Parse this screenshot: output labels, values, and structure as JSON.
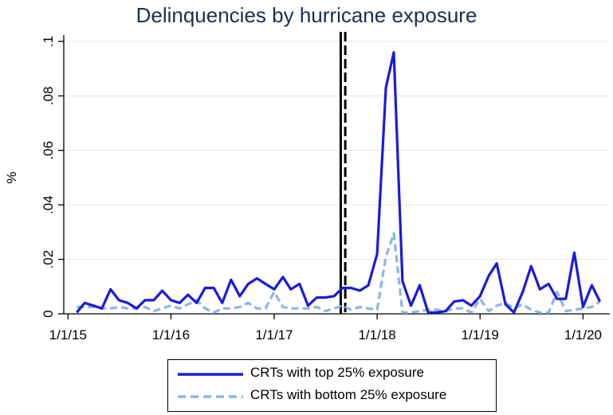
{
  "chart_data": {
    "type": "line",
    "title": "Delinquencies by hurricane exposure",
    "xlabel": "",
    "ylabel": "%",
    "x_tick_labels": [
      "1/1/15",
      "1/1/16",
      "1/1/17",
      "1/1/18",
      "1/1/19",
      "1/1/20"
    ],
    "y_tick_labels": [
      "0",
      ".02",
      ".04",
      ".06",
      ".08",
      ".1"
    ],
    "y_ticks": [
      0,
      0.02,
      0.04,
      0.06,
      0.08,
      0.1
    ],
    "ylim": [
      0,
      0.1
    ],
    "x_range": [
      "2015-01",
      "2020-03"
    ],
    "vertical_lines": [
      {
        "x": "2017-08-25",
        "style": "solid",
        "color": "#000000"
      },
      {
        "x": "2017-09-10",
        "style": "dashed",
        "color": "#000000"
      }
    ],
    "grid": "horizontal",
    "legend_position": "bottom",
    "x": [
      "2015-02",
      "2015-03",
      "2015-04",
      "2015-05",
      "2015-06",
      "2015-07",
      "2015-08",
      "2015-09",
      "2015-10",
      "2015-11",
      "2015-12",
      "2016-01",
      "2016-02",
      "2016-03",
      "2016-04",
      "2016-05",
      "2016-06",
      "2016-07",
      "2016-08",
      "2016-09",
      "2016-10",
      "2016-11",
      "2016-12",
      "2017-01",
      "2017-02",
      "2017-03",
      "2017-04",
      "2017-05",
      "2017-06",
      "2017-07",
      "2017-08",
      "2017-09",
      "2017-10",
      "2017-11",
      "2017-12",
      "2018-01",
      "2018-02",
      "2018-03",
      "2018-04",
      "2018-05",
      "2018-06",
      "2018-07",
      "2018-08",
      "2018-09",
      "2018-10",
      "2018-11",
      "2018-12",
      "2019-01",
      "2019-02",
      "2019-03",
      "2019-04",
      "2019-05",
      "2019-06",
      "2019-07",
      "2019-08",
      "2019-09",
      "2019-10",
      "2019-11",
      "2019-12",
      "2020-01",
      "2020-02",
      "2020-03"
    ],
    "series": [
      {
        "name": "CRTs with top 25% exposure",
        "color": "#1a1adb",
        "style": "solid",
        "values": [
          0.0005,
          0.004,
          0.003,
          0.002,
          0.009,
          0.005,
          0.004,
          0.002,
          0.005,
          0.005,
          0.0085,
          0.005,
          0.004,
          0.007,
          0.004,
          0.0095,
          0.0095,
          0.004,
          0.0125,
          0.0065,
          0.011,
          0.013,
          0.011,
          0.009,
          0.0135,
          0.009,
          0.011,
          0.003,
          0.006,
          0.006,
          0.0065,
          0.0095,
          0.0095,
          0.0085,
          0.0105,
          0.022,
          0.083,
          0.096,
          0.012,
          0.003,
          0.0105,
          0.0005,
          0.0005,
          0.001,
          0.0045,
          0.005,
          0.003,
          0.0065,
          0.014,
          0.0185,
          0.0035,
          0.0005,
          0.008,
          0.0175,
          0.009,
          0.011,
          0.0055,
          0.0055,
          0.0225,
          0.0025,
          0.0105,
          0.0045
        ]
      },
      {
        "name": "CRTs with bottom 25% exposure",
        "color": "#8bb5ea",
        "style": "dashed",
        "values": [
          0.0025,
          0.0025,
          0.0025,
          0.002,
          0.002,
          0.0025,
          0.002,
          0.002,
          0.0025,
          0.001,
          0.002,
          0.003,
          0.002,
          0.0035,
          0.005,
          0.002,
          0.0005,
          0.002,
          0.002,
          0.0025,
          0.004,
          0.002,
          0.002,
          0.008,
          0.0025,
          0.002,
          0.002,
          0.002,
          0.0025,
          0.001,
          0.002,
          0.003,
          0.0015,
          0.0025,
          0.002,
          0.0015,
          0.021,
          0.0295,
          0.0005,
          0.0005,
          0.001,
          0.0015,
          0.0015,
          0.001,
          0.002,
          0.002,
          0.0005,
          0.0055,
          0.001,
          0.003,
          0.004,
          0.002,
          0.0035,
          0.0015,
          0.0005,
          0.0005,
          0.008,
          0.001,
          0.0015,
          0.002,
          0.0025,
          0.0045
        ]
      }
    ]
  }
}
